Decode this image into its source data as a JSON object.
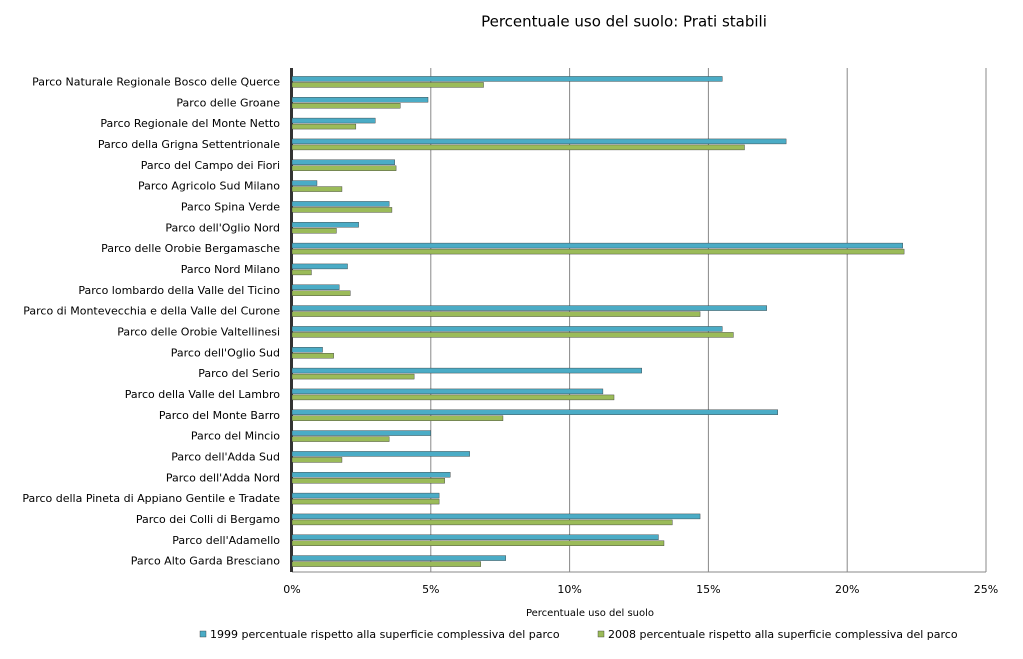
{
  "chart_data": {
    "type": "hbar",
    "title": "Percentuale  uso del suolo: Prati stabili",
    "x_label": "Percentuale uso del suolo",
    "categories": [
      "Parco Naturale Regionale Bosco delle Querce",
      "Parco delle Groane",
      "Parco Regionale del Monte Netto",
      "Parco della Grigna Settentrionale",
      "Parco del Campo dei Fiori",
      "Parco Agricolo Sud Milano",
      "Parco Spina Verde",
      "Parco dell'Oglio Nord",
      "Parco delle Orobie Bergamasche",
      "Parco Nord Milano",
      "Parco lombardo della Valle del Ticino",
      "Parco di Montevecchia e della Valle del Curone",
      "Parco delle Orobie Valtellinesi",
      "Parco dell'Oglio Sud",
      "Parco del Serio",
      "Parco della Valle del Lambro",
      "Parco del Monte Barro",
      "Parco del Mincio",
      "Parco dell'Adda Sud",
      "Parco dell'Adda Nord",
      "Parco della Pineta di Appiano Gentile e Tradate",
      "Parco dei Colli di Bergamo",
      "Parco dell'Adamello",
      "Parco Alto Garda Bresciano"
    ],
    "series": [
      {
        "name": "1999 percentuale rispetto alla superficie complessiva del parco",
        "color": "#4bacc6",
        "values": [
          15.5,
          4.9,
          3.0,
          17.8,
          3.7,
          0.9,
          3.5,
          2.4,
          22.0,
          2.0,
          1.7,
          17.1,
          15.5,
          1.1,
          12.6,
          11.2,
          17.5,
          5.0,
          6.4,
          5.7,
          5.3,
          14.7,
          13.2,
          7.7
        ]
      },
      {
        "name": "2008 percentuale rispetto alla superficie complessiva del parco",
        "color": "#9bbb59",
        "values": [
          6.9,
          3.9,
          2.3,
          16.3,
          3.75,
          1.8,
          3.6,
          1.6,
          22.05,
          0.7,
          2.1,
          14.7,
          15.9,
          1.5,
          4.4,
          11.6,
          7.6,
          3.5,
          1.8,
          5.5,
          5.3,
          13.7,
          13.4,
          6.8
        ]
      }
    ],
    "xlim": [
      0,
      25
    ],
    "xticks": [
      {
        "value": 0,
        "label": "0%"
      },
      {
        "value": 5,
        "label": "5%"
      },
      {
        "value": 10,
        "label": "10%"
      },
      {
        "value": 15,
        "label": "15%"
      },
      {
        "value": 20,
        "label": "20%"
      },
      {
        "value": 25,
        "label": "25%"
      }
    ],
    "grid": true,
    "legend": "bottom"
  }
}
